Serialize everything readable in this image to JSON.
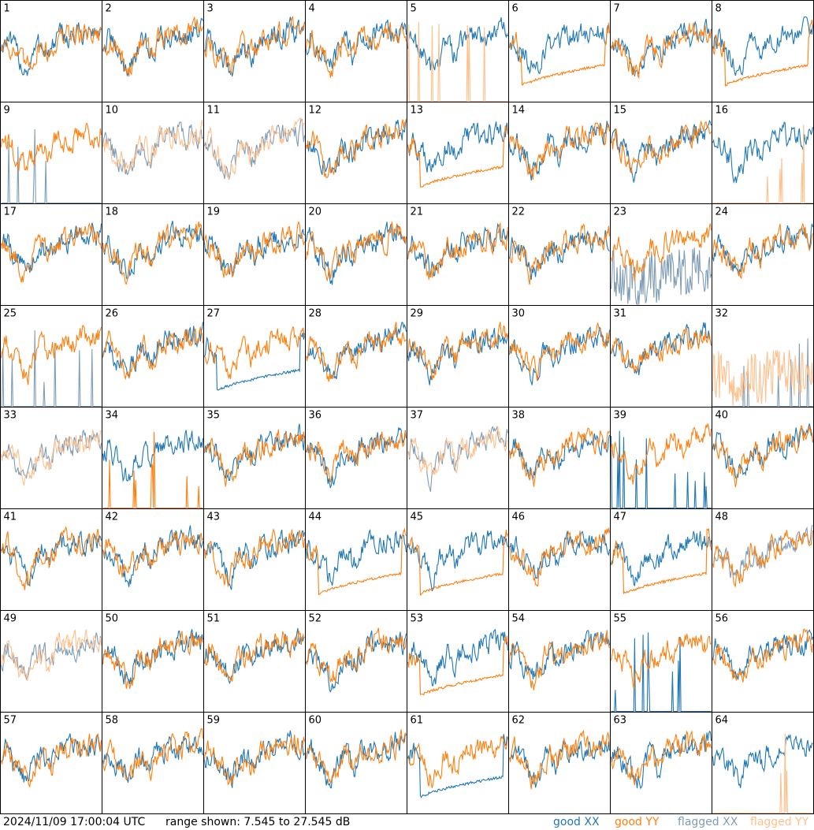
{
  "footer": {
    "timestamp": "2024/11/09 17:00:04 UTC",
    "range_text": "range shown: 7.545 to 27.545 dB"
  },
  "legend": {
    "good_label": "good",
    "flagged_label": "flagged",
    "xx_label": "XX",
    "yy_label": "YY"
  },
  "colors": {
    "good_xx": "#1f77b4",
    "good_yy": "#ff7f0e",
    "flagged_xx": "#7f9cb6",
    "flagged_yy": "#ffc08c",
    "grid_line": "#000000"
  },
  "chart_data": {
    "type": "line",
    "grid": "8x8 small multiples",
    "ylim": [
      7.545,
      27.545
    ],
    "units": "dB",
    "panels": [
      {
        "label": "1",
        "xx": "good",
        "yy": "good",
        "xx_shape": "normal",
        "yy_shape": "normal"
      },
      {
        "label": "2",
        "xx": "good",
        "yy": "good",
        "xx_shape": "normal",
        "yy_shape": "normal"
      },
      {
        "label": "3",
        "xx": "good",
        "yy": "good",
        "xx_shape": "normal",
        "yy_shape": "normal"
      },
      {
        "label": "4",
        "xx": "good",
        "yy": "good",
        "xx_shape": "normal",
        "yy_shape": "normal"
      },
      {
        "label": "5",
        "xx": "good",
        "yy": "flagged",
        "xx_shape": "normal",
        "yy_shape": "spikes"
      },
      {
        "label": "6",
        "xx": "good",
        "yy": "good",
        "xx_shape": "normal",
        "yy_shape": "drift"
      },
      {
        "label": "7",
        "xx": "good",
        "yy": "good",
        "xx_shape": "normal",
        "yy_shape": "normal"
      },
      {
        "label": "8",
        "xx": "good",
        "yy": "good",
        "xx_shape": "normal",
        "yy_shape": "drift"
      },
      {
        "label": "9",
        "xx": "flagged",
        "yy": "good",
        "xx_shape": "spikes",
        "yy_shape": "normal"
      },
      {
        "label": "10",
        "xx": "flagged",
        "yy": "flagged",
        "xx_shape": "normal",
        "yy_shape": "normal"
      },
      {
        "label": "11",
        "xx": "flagged",
        "yy": "flagged",
        "xx_shape": "normal",
        "yy_shape": "normal"
      },
      {
        "label": "12",
        "xx": "good",
        "yy": "good",
        "xx_shape": "normal",
        "yy_shape": "normal"
      },
      {
        "label": "13",
        "xx": "good",
        "yy": "good",
        "xx_shape": "normal",
        "yy_shape": "drift"
      },
      {
        "label": "14",
        "xx": "good",
        "yy": "good",
        "xx_shape": "normal",
        "yy_shape": "normal"
      },
      {
        "label": "15",
        "xx": "good",
        "yy": "good",
        "xx_shape": "normal",
        "yy_shape": "normal"
      },
      {
        "label": "16",
        "xx": "good",
        "yy": "flagged",
        "xx_shape": "normal",
        "yy_shape": "spikes"
      },
      {
        "label": "17",
        "xx": "good",
        "yy": "good",
        "xx_shape": "normal",
        "yy_shape": "normal"
      },
      {
        "label": "18",
        "xx": "good",
        "yy": "good",
        "xx_shape": "normal",
        "yy_shape": "normal"
      },
      {
        "label": "19",
        "xx": "good",
        "yy": "good",
        "xx_shape": "normal",
        "yy_shape": "normal"
      },
      {
        "label": "20",
        "xx": "good",
        "yy": "good",
        "xx_shape": "normal",
        "yy_shape": "normal"
      },
      {
        "label": "21",
        "xx": "good",
        "yy": "good",
        "xx_shape": "normal",
        "yy_shape": "normal"
      },
      {
        "label": "22",
        "xx": "good",
        "yy": "good",
        "xx_shape": "normal",
        "yy_shape": "normal"
      },
      {
        "label": "23",
        "xx": "flagged",
        "yy": "good",
        "xx_shape": "noisy",
        "yy_shape": "normal"
      },
      {
        "label": "24",
        "xx": "good",
        "yy": "good",
        "xx_shape": "normal",
        "yy_shape": "normal"
      },
      {
        "label": "25",
        "xx": "flagged",
        "yy": "good",
        "xx_shape": "spikes",
        "yy_shape": "normal"
      },
      {
        "label": "26",
        "xx": "good",
        "yy": "good",
        "xx_shape": "normal",
        "yy_shape": "normal"
      },
      {
        "label": "27",
        "xx": "good",
        "yy": "good",
        "xx_shape": "drift",
        "yy_shape": "normal"
      },
      {
        "label": "28",
        "xx": "good",
        "yy": "good",
        "xx_shape": "normal",
        "yy_shape": "normal"
      },
      {
        "label": "29",
        "xx": "good",
        "yy": "good",
        "xx_shape": "normal",
        "yy_shape": "normal"
      },
      {
        "label": "30",
        "xx": "good",
        "yy": "good",
        "xx_shape": "normal",
        "yy_shape": "normal"
      },
      {
        "label": "31",
        "xx": "good",
        "yy": "good",
        "xx_shape": "normal",
        "yy_shape": "normal"
      },
      {
        "label": "32",
        "xx": "flagged",
        "yy": "flagged",
        "xx_shape": "spikes",
        "yy_shape": "noisy"
      },
      {
        "label": "33",
        "xx": "flagged",
        "yy": "flagged",
        "xx_shape": "normal",
        "yy_shape": "normal"
      },
      {
        "label": "34",
        "xx": "good",
        "yy": "good",
        "xx_shape": "normal",
        "yy_shape": "spikes"
      },
      {
        "label": "35",
        "xx": "good",
        "yy": "good",
        "xx_shape": "normal",
        "yy_shape": "normal"
      },
      {
        "label": "36",
        "xx": "good",
        "yy": "good",
        "xx_shape": "normal",
        "yy_shape": "normal"
      },
      {
        "label": "37",
        "xx": "flagged",
        "yy": "flagged",
        "xx_shape": "normal",
        "yy_shape": "normal"
      },
      {
        "label": "38",
        "xx": "good",
        "yy": "good",
        "xx_shape": "normal",
        "yy_shape": "normal"
      },
      {
        "label": "39",
        "xx": "good",
        "yy": "good",
        "xx_shape": "spikes",
        "yy_shape": "normal"
      },
      {
        "label": "40",
        "xx": "good",
        "yy": "good",
        "xx_shape": "normal",
        "yy_shape": "normal"
      },
      {
        "label": "41",
        "xx": "good",
        "yy": "good",
        "xx_shape": "normal",
        "yy_shape": "normal"
      },
      {
        "label": "42",
        "xx": "good",
        "yy": "good",
        "xx_shape": "normal",
        "yy_shape": "normal"
      },
      {
        "label": "43",
        "xx": "good",
        "yy": "good",
        "xx_shape": "normal",
        "yy_shape": "normal"
      },
      {
        "label": "44",
        "xx": "good",
        "yy": "good",
        "xx_shape": "normal",
        "yy_shape": "drift"
      },
      {
        "label": "45",
        "xx": "good",
        "yy": "good",
        "xx_shape": "normal",
        "yy_shape": "drift"
      },
      {
        "label": "46",
        "xx": "good",
        "yy": "good",
        "xx_shape": "normal",
        "yy_shape": "normal"
      },
      {
        "label": "47",
        "xx": "good",
        "yy": "good",
        "xx_shape": "normal",
        "yy_shape": "drift"
      },
      {
        "label": "48",
        "xx": "flagged",
        "yy": "good",
        "xx_shape": "normal",
        "yy_shape": "normal"
      },
      {
        "label": "49",
        "xx": "flagged",
        "yy": "flagged",
        "xx_shape": "normal",
        "yy_shape": "normal"
      },
      {
        "label": "50",
        "xx": "good",
        "yy": "good",
        "xx_shape": "normal",
        "yy_shape": "normal"
      },
      {
        "label": "51",
        "xx": "good",
        "yy": "good",
        "xx_shape": "normal",
        "yy_shape": "normal"
      },
      {
        "label": "52",
        "xx": "good",
        "yy": "good",
        "xx_shape": "normal",
        "yy_shape": "normal"
      },
      {
        "label": "53",
        "xx": "good",
        "yy": "good",
        "xx_shape": "normal",
        "yy_shape": "drift"
      },
      {
        "label": "54",
        "xx": "good",
        "yy": "good",
        "xx_shape": "normal",
        "yy_shape": "normal"
      },
      {
        "label": "55",
        "xx": "good",
        "yy": "good",
        "xx_shape": "spikes",
        "yy_shape": "normal"
      },
      {
        "label": "56",
        "xx": "good",
        "yy": "good",
        "xx_shape": "normal",
        "yy_shape": "normal"
      },
      {
        "label": "57",
        "xx": "good",
        "yy": "good",
        "xx_shape": "normal",
        "yy_shape": "normal"
      },
      {
        "label": "58",
        "xx": "good",
        "yy": "good",
        "xx_shape": "normal",
        "yy_shape": "normal"
      },
      {
        "label": "59",
        "xx": "good",
        "yy": "good",
        "xx_shape": "normal",
        "yy_shape": "normal"
      },
      {
        "label": "60",
        "xx": "good",
        "yy": "good",
        "xx_shape": "normal",
        "yy_shape": "normal"
      },
      {
        "label": "61",
        "xx": "good",
        "yy": "good",
        "xx_shape": "drift",
        "yy_shape": "normal"
      },
      {
        "label": "62",
        "xx": "good",
        "yy": "good",
        "xx_shape": "normal",
        "yy_shape": "normal"
      },
      {
        "label": "63",
        "xx": "good",
        "yy": "good",
        "xx_shape": "normal",
        "yy_shape": "normal"
      },
      {
        "label": "64",
        "xx": "good",
        "yy": "flagged",
        "xx_shape": "normal",
        "yy_shape": "spikes"
      }
    ]
  }
}
